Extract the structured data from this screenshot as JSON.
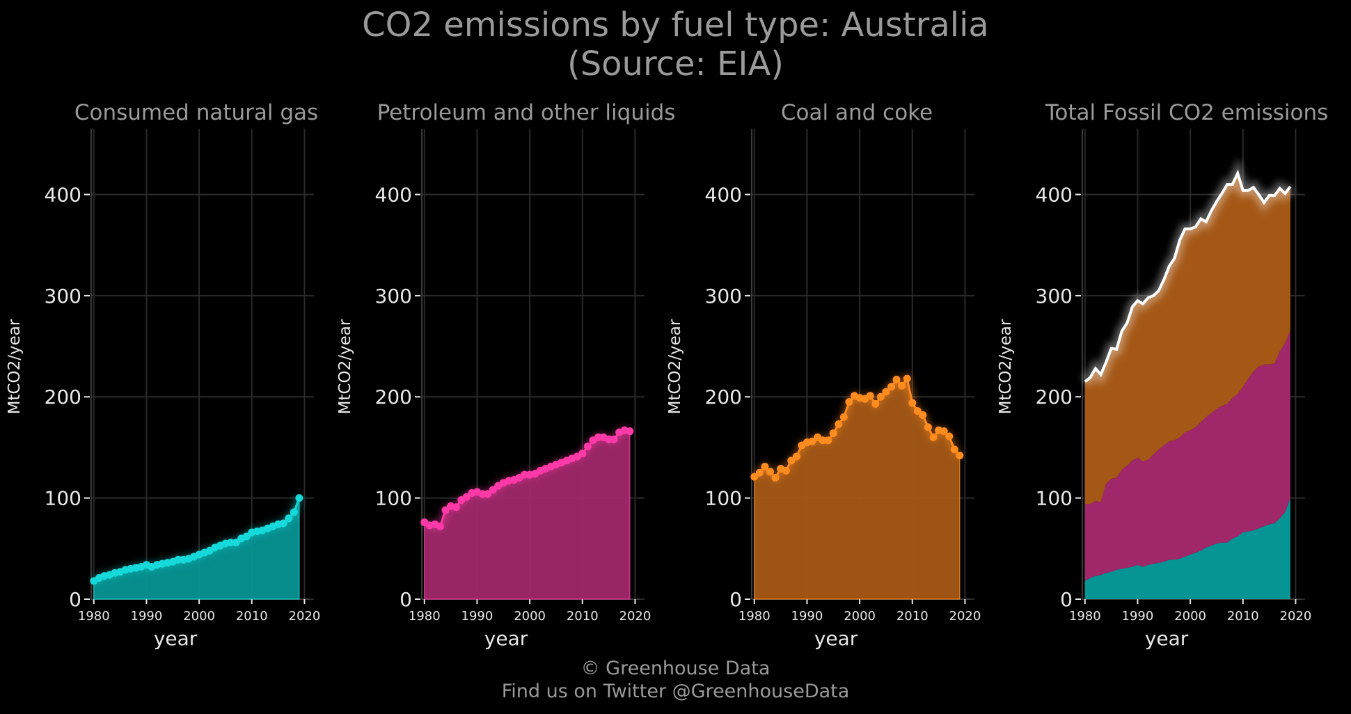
{
  "title_line1": "CO2 emissions by fuel type: Australia",
  "title_line2": "(Source: EIA)",
  "footer_line1": "© Greenhouse Data",
  "footer_line2": "Find us on Twitter @GreenhouseData",
  "colors": {
    "background": "#000000",
    "gas": "#16d9d9",
    "gas_fill": "#079494",
    "petroleum": "#ff3aa8",
    "petroleum_fill": "#a0286a",
    "coal": "#ff8c1e",
    "coal_fill": "#a55816",
    "total_line": "#ffffff",
    "grid": "#2a2a2a"
  },
  "chart_data": [
    {
      "type": "area",
      "title": "Consumed natural gas",
      "xlabel": "year",
      "ylabel": "MtCO2/year",
      "xlim": [
        1979.5,
        2021
      ],
      "ylim": [
        0,
        465
      ],
      "xticks": [
        "1980",
        "1990",
        "2000",
        "2010",
        "2020"
      ],
      "yticks": [
        "0",
        "100",
        "200",
        "300",
        "400"
      ],
      "grid": true,
      "series": [
        {
          "color_key": "gas",
          "x": [
            1980,
            1981,
            1982,
            1983,
            1984,
            1985,
            1986,
            1987,
            1988,
            1989,
            1990,
            1991,
            1992,
            1993,
            1994,
            1995,
            1996,
            1997,
            1998,
            1999,
            2000,
            2001,
            2002,
            2003,
            2004,
            2005,
            2006,
            2007,
            2008,
            2009,
            2010,
            2011,
            2012,
            2013,
            2014,
            2015,
            2016,
            2017,
            2018,
            2019
          ],
          "values": [
            18,
            21,
            23,
            24,
            26,
            27,
            29,
            30,
            31,
            32,
            34,
            32,
            34,
            35,
            36,
            37,
            39,
            39,
            40,
            42,
            44,
            46,
            48,
            51,
            53,
            55,
            56,
            56,
            60,
            62,
            66,
            67,
            68,
            70,
            72,
            74,
            75,
            80,
            86,
            100
          ]
        }
      ]
    },
    {
      "type": "area",
      "title": "Petroleum and other liquids",
      "xlabel": "year",
      "ylabel": "MtCO2/year",
      "xlim": [
        1979.5,
        2021
      ],
      "ylim": [
        0,
        465
      ],
      "xticks": [
        "1980",
        "1990",
        "2000",
        "2010",
        "2020"
      ],
      "yticks": [
        "0",
        "100",
        "200",
        "300",
        "400"
      ],
      "grid": true,
      "series": [
        {
          "color_key": "petroleum",
          "x": [
            1980,
            1981,
            1982,
            1983,
            1984,
            1985,
            1986,
            1987,
            1988,
            1989,
            1990,
            1991,
            1992,
            1993,
            1994,
            1995,
            1996,
            1997,
            1998,
            1999,
            2000,
            2001,
            2002,
            2003,
            2004,
            2005,
            2006,
            2007,
            2008,
            2009,
            2010,
            2011,
            2012,
            2013,
            2014,
            2015,
            2016,
            2017,
            2018,
            2019
          ],
          "values": [
            76,
            73,
            74,
            72,
            88,
            92,
            91,
            98,
            101,
            105,
            106,
            104,
            104,
            108,
            112,
            115,
            117,
            118,
            120,
            123,
            123,
            124,
            127,
            129,
            131,
            133,
            135,
            137,
            139,
            141,
            144,
            151,
            157,
            160,
            160,
            158,
            158,
            165,
            167,
            166
          ]
        }
      ]
    },
    {
      "type": "area",
      "title": "Coal and coke",
      "xlabel": "year",
      "ylabel": "MtCO2/year",
      "xlim": [
        1979.5,
        2021
      ],
      "ylim": [
        0,
        465
      ],
      "xticks": [
        "1980",
        "1990",
        "2000",
        "2010",
        "2020"
      ],
      "yticks": [
        "0",
        "100",
        "200",
        "300",
        "400"
      ],
      "grid": true,
      "series": [
        {
          "color_key": "coal",
          "x": [
            1980,
            1981,
            1982,
            1983,
            1984,
            1985,
            1986,
            1987,
            1988,
            1989,
            1990,
            1991,
            1992,
            1993,
            1994,
            1995,
            1996,
            1997,
            1998,
            1999,
            2000,
            2001,
            2002,
            2003,
            2004,
            2005,
            2006,
            2007,
            2008,
            2009,
            2010,
            2011,
            2012,
            2013,
            2014,
            2015,
            2016,
            2017,
            2018,
            2019
          ],
          "values": [
            121,
            125,
            131,
            126,
            120,
            129,
            127,
            137,
            141,
            152,
            155,
            156,
            160,
            157,
            157,
            164,
            173,
            180,
            195,
            201,
            199,
            198,
            201,
            193,
            200,
            205,
            210,
            217,
            211,
            218,
            194,
            186,
            182,
            170,
            160,
            167,
            166,
            161,
            148,
            142
          ]
        }
      ]
    },
    {
      "type": "area",
      "title": "Total Fossil CO2 emissions",
      "xlabel": "year",
      "ylabel": "MtCO2/year",
      "xlim": [
        1979.5,
        2021
      ],
      "ylim": [
        0,
        465
      ],
      "xticks": [
        "1980",
        "1990",
        "2000",
        "2010",
        "2020"
      ],
      "yticks": [
        "0",
        "100",
        "200",
        "300",
        "400"
      ],
      "grid": true,
      "stacked": true,
      "total_line": true,
      "series": [
        {
          "color_key": "gas",
          "ref": 0
        },
        {
          "color_key": "petroleum",
          "ref": 1
        },
        {
          "color_key": "coal",
          "ref": 2
        }
      ]
    }
  ]
}
